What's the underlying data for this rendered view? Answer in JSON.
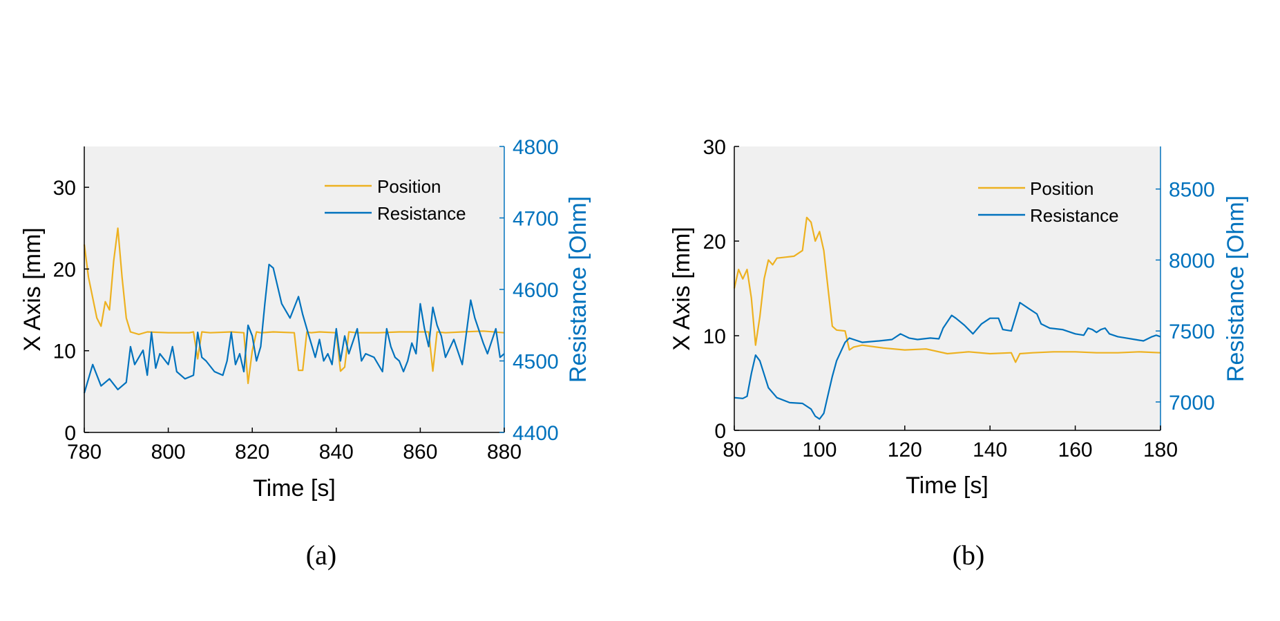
{
  "colors": {
    "position": "#EDB120",
    "resistance": "#0072BD",
    "plot_bg": "#F0F0F0",
    "axis": "#000000"
  },
  "chart_data": [
    {
      "type": "line",
      "caption": "(a)",
      "xlabel": "Time [s]",
      "ylabel": "X Axis [mm]",
      "y2label": "Resistance [Ohm]",
      "xlim": [
        780,
        880
      ],
      "ylim": [
        0,
        35
      ],
      "y2lim": [
        4400,
        4800
      ],
      "xticks": [
        "780",
        "800",
        "820",
        "840",
        "860",
        "880"
      ],
      "yticks": [
        "0",
        "10",
        "20",
        "30"
      ],
      "y2ticks": [
        "4400",
        "4500",
        "4600",
        "4700",
        "4800"
      ],
      "legend": {
        "position": "top-right",
        "entries": [
          "Position",
          "Resistance"
        ]
      },
      "series": [
        {
          "name": "Position",
          "axis": "left",
          "x": [
            780,
            781,
            783,
            784,
            785,
            786,
            787,
            788,
            789,
            790,
            791,
            793,
            795,
            800,
            805,
            806,
            807,
            808,
            810,
            815,
            818,
            819,
            820,
            821,
            822,
            825,
            830,
            831,
            832,
            833,
            834,
            836,
            840,
            841,
            842,
            843,
            845,
            850,
            855,
            860,
            862,
            863,
            864,
            866,
            870,
            875,
            880
          ],
          "y": [
            23,
            19,
            14,
            13,
            16,
            15,
            21,
            25,
            19,
            14,
            12.3,
            12,
            12.3,
            12.2,
            12.2,
            12.3,
            9,
            12.3,
            12.2,
            12.3,
            12.2,
            6,
            10,
            12.3,
            12.2,
            12.3,
            12.2,
            7.6,
            7.6,
            12.3,
            12.2,
            12.3,
            12.2,
            7.5,
            8,
            12.3,
            12.2,
            12.2,
            12.3,
            12.3,
            12.3,
            7.5,
            12.3,
            12.2,
            12.3,
            12.4,
            12.2
          ]
        },
        {
          "name": "Resistance",
          "axis": "right",
          "x": [
            780,
            782,
            784,
            786,
            788,
            790,
            791,
            792,
            794,
            795,
            796,
            797,
            798,
            800,
            801,
            802,
            804,
            806,
            807,
            808,
            809,
            811,
            813,
            814,
            815,
            816,
            817,
            818,
            819,
            820,
            821,
            822,
            823,
            824,
            825,
            827,
            829,
            831,
            832,
            833,
            835,
            836,
            837,
            838,
            839,
            840,
            841,
            842,
            843,
            845,
            846,
            847,
            849,
            851,
            852,
            853,
            854,
            855,
            856,
            857,
            858,
            859,
            860,
            861,
            862,
            863,
            864,
            865,
            866,
            868,
            870,
            871,
            872,
            873,
            875,
            876,
            878,
            879,
            880
          ],
          "y": [
            4455,
            4495,
            4465,
            4475,
            4460,
            4470,
            4520,
            4495,
            4515,
            4480,
            4540,
            4490,
            4510,
            4495,
            4520,
            4485,
            4475,
            4480,
            4540,
            4505,
            4500,
            4485,
            4480,
            4500,
            4540,
            4495,
            4510,
            4485,
            4550,
            4535,
            4500,
            4520,
            4580,
            4635,
            4630,
            4580,
            4560,
            4590,
            4565,
            4545,
            4505,
            4530,
            4500,
            4510,
            4495,
            4545,
            4500,
            4535,
            4510,
            4545,
            4500,
            4510,
            4505,
            4485,
            4545,
            4520,
            4505,
            4500,
            4485,
            4500,
            4525,
            4510,
            4580,
            4545,
            4520,
            4575,
            4550,
            4535,
            4505,
            4530,
            4495,
            4540,
            4585,
            4560,
            4525,
            4510,
            4545,
            4505,
            4510
          ]
        }
      ]
    },
    {
      "type": "line",
      "caption": "(b)",
      "xlabel": "Time [s]",
      "ylabel": "X Axis [mm]",
      "y2label": "Resistance [Ohm]",
      "xlim": [
        80,
        180
      ],
      "ylim": [
        0,
        30
      ],
      "y2lim": [
        6800,
        8800
      ],
      "xticks": [
        "80",
        "100",
        "120",
        "140",
        "160",
        "180"
      ],
      "yticks": [
        "0",
        "10",
        "20",
        "30"
      ],
      "y2ticks": [
        "7000",
        "7500",
        "8000",
        "8500"
      ],
      "legend": {
        "position": "top-right",
        "entries": [
          "Position",
          "Resistance"
        ]
      },
      "series": [
        {
          "name": "Position",
          "axis": "left",
          "x": [
            80,
            81,
            82,
            83,
            84,
            85,
            86,
            87,
            88,
            89,
            90,
            92,
            94,
            96,
            97,
            98,
            99,
            100,
            101,
            102,
            103,
            104,
            106,
            107,
            108,
            110,
            115,
            120,
            125,
            130,
            135,
            140,
            145,
            146,
            147,
            150,
            155,
            160,
            165,
            170,
            175,
            180
          ],
          "y": [
            15,
            17,
            16,
            17,
            14,
            9,
            12,
            16,
            18,
            17.5,
            18.2,
            18.3,
            18.4,
            19,
            22.5,
            22,
            20,
            21,
            19,
            15,
            11,
            10.6,
            10.5,
            8.5,
            8.8,
            9,
            8.7,
            8.5,
            8.6,
            8.1,
            8.3,
            8.1,
            8.2,
            7.2,
            8.1,
            8.2,
            8.3,
            8.3,
            8.2,
            8.2,
            8.3,
            8.2
          ]
        },
        {
          "name": "Resistance",
          "axis": "right",
          "x": [
            80,
            82,
            83,
            84,
            85,
            86,
            88,
            90,
            93,
            96,
            98,
            99,
            100,
            101,
            102,
            103,
            104,
            106,
            107,
            108,
            110,
            114,
            117,
            119,
            121,
            123,
            126,
            128,
            129,
            131,
            132,
            134,
            136,
            138,
            140,
            142,
            143,
            145,
            147,
            149,
            151,
            152,
            154,
            157,
            160,
            162,
            163,
            164,
            165,
            166,
            167,
            168,
            170,
            172,
            174,
            176,
            178,
            179,
            180
          ],
          "y": [
            7030,
            7025,
            7040,
            7200,
            7330,
            7290,
            7100,
            7030,
            6995,
            6990,
            6950,
            6900,
            6880,
            6920,
            7050,
            7180,
            7290,
            7420,
            7450,
            7440,
            7420,
            7430,
            7440,
            7480,
            7450,
            7440,
            7450,
            7445,
            7520,
            7610,
            7590,
            7540,
            7480,
            7550,
            7590,
            7590,
            7510,
            7500,
            7700,
            7660,
            7620,
            7550,
            7520,
            7510,
            7480,
            7470,
            7520,
            7510,
            7490,
            7510,
            7520,
            7480,
            7460,
            7450,
            7440,
            7430,
            7460,
            7470,
            7460
          ]
        }
      ]
    }
  ]
}
